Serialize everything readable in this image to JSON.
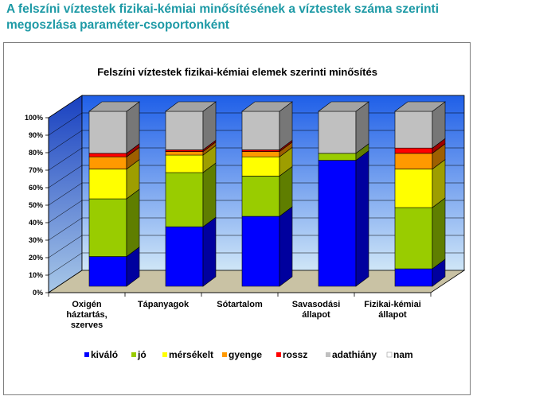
{
  "page": {
    "title_line1": "A felszíni víztestek fizikai-kémiai minősítésének a víztestek száma szerinti",
    "title_line2": "megoszlása paraméter-csoportonként"
  },
  "chart_data": {
    "type": "bar",
    "stacked": true,
    "percent": true,
    "title": "Felszíni víztestek fizikai-kémiai elemek szerinti minősítés",
    "categories": [
      [
        "Oxigén",
        "háztartás,",
        "szerves"
      ],
      [
        "Tápanyagok"
      ],
      [
        "Sótartalom"
      ],
      [
        "Savasodási",
        "állapot"
      ],
      [
        "Fizikai-kémiai",
        "állapot"
      ]
    ],
    "category_names": [
      "Oxigén háztartás, szerves",
      "Tápanyagok",
      "Sótartalom",
      "Savasodási állapot",
      "Fizikai-kémiai állapot"
    ],
    "series": [
      {
        "name": "kiváló",
        "color": "#0000ff",
        "values": [
          17,
          34,
          40,
          72,
          10
        ]
      },
      {
        "name": "jó",
        "color": "#99cc00",
        "values": [
          33,
          31,
          23,
          4,
          35
        ]
      },
      {
        "name": "mérsékelt",
        "color": "#ffff00",
        "values": [
          17,
          10,
          11,
          0,
          22
        ]
      },
      {
        "name": "gyenge",
        "color": "#ff9900",
        "values": [
          7,
          2,
          3,
          0,
          9
        ]
      },
      {
        "name": "rossz",
        "color": "#ff0000",
        "values": [
          2,
          1,
          1,
          0,
          3
        ]
      },
      {
        "name": "adathiány",
        "color": "#c0c0c0",
        "values": [
          24,
          22,
          22,
          24,
          21
        ]
      },
      {
        "name": "nam",
        "color": "#ffffff",
        "values": [
          0,
          0,
          0,
          0,
          0
        ]
      }
    ],
    "yticks": [
      "0%",
      "10%",
      "20%",
      "30%",
      "40%",
      "50%",
      "60%",
      "70%",
      "80%",
      "90%",
      "100%"
    ],
    "ylim": [
      0,
      100
    ],
    "legend_position": "bottom",
    "grid": true
  }
}
